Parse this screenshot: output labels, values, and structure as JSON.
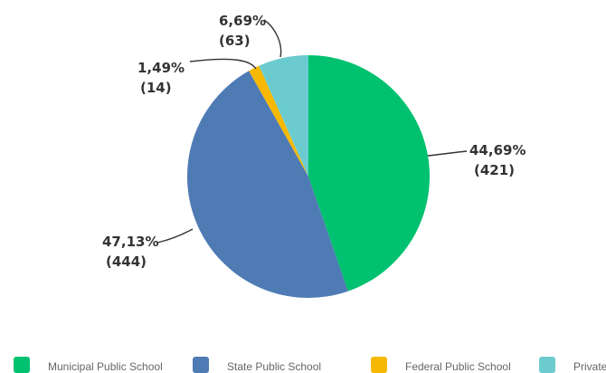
{
  "chart_data": {
    "type": "pie",
    "categories": [
      "Municipal Public School",
      "State Public School",
      "Federal Public School",
      "Private"
    ],
    "values": [
      421,
      444,
      14,
      63
    ],
    "percent_labels": [
      "44,69%",
      "47,13%",
      "1,49%",
      "6,69%"
    ],
    "count_labels": [
      "(421)",
      "(444)",
      "(14)",
      "(63)"
    ],
    "colors": [
      "#00c16f",
      "#4f7bb5",
      "#f6b800",
      "#6ccbcf"
    ],
    "legend": "bottom"
  }
}
